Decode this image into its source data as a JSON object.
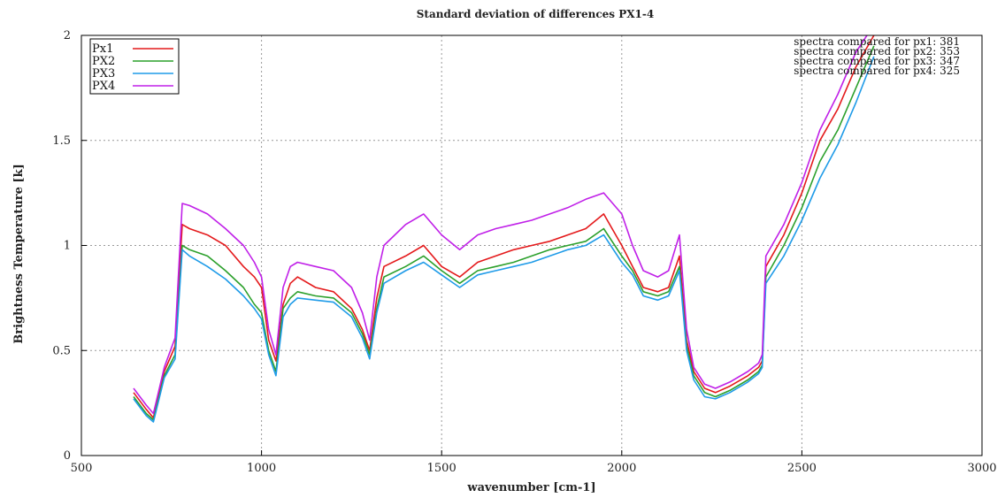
{
  "chart_data": {
    "type": "line",
    "title": "Standard deviation of differences PX1-4",
    "xlabel": "wavenumber [cm-1]",
    "ylabel": "Brightness Temperature [k]",
    "xlim": [
      500,
      3000
    ],
    "ylim": [
      0,
      2
    ],
    "xticks": [
      500,
      1000,
      1500,
      2000,
      2500,
      3000
    ],
    "yticks": [
      0,
      0.5,
      1,
      1.5,
      2
    ],
    "xtick_labels": [
      "500",
      "1000",
      "1500",
      "2000",
      "2500",
      "3000"
    ],
    "ytick_labels": [
      "0",
      "0.5",
      "1",
      "1.5",
      "2"
    ],
    "grid": true,
    "legend_position": "top-left",
    "annotations": [
      "spectra compared for px1: 381",
      "spectra compared for px2: 353",
      "spectra compared for px3: 347",
      "spectra compared for px4: 325"
    ],
    "x": [
      645,
      680,
      700,
      730,
      760,
      780,
      800,
      850,
      900,
      950,
      980,
      1000,
      1020,
      1040,
      1060,
      1080,
      1100,
      1150,
      1200,
      1250,
      1280,
      1300,
      1320,
      1340,
      1400,
      1450,
      1500,
      1550,
      1600,
      1650,
      1700,
      1750,
      1800,
      1850,
      1900,
      1950,
      2000,
      2030,
      2060,
      2100,
      2130,
      2160,
      2180,
      2200,
      2230,
      2260,
      2300,
      2350,
      2380,
      2390,
      2400,
      2450,
      2500,
      2550,
      2600,
      2650,
      2700
    ],
    "series": [
      {
        "name": "Px1",
        "color": "#e41a1c",
        "values": [
          0.3,
          0.22,
          0.18,
          0.4,
          0.52,
          1.1,
          1.08,
          1.05,
          1.0,
          0.9,
          0.85,
          0.8,
          0.55,
          0.45,
          0.72,
          0.82,
          0.85,
          0.8,
          0.78,
          0.7,
          0.6,
          0.5,
          0.75,
          0.9,
          0.95,
          1.0,
          0.9,
          0.85,
          0.92,
          0.95,
          0.98,
          1.0,
          1.02,
          1.05,
          1.08,
          1.15,
          1.0,
          0.9,
          0.8,
          0.78,
          0.8,
          0.95,
          0.55,
          0.4,
          0.32,
          0.3,
          0.33,
          0.38,
          0.42,
          0.45,
          0.9,
          1.05,
          1.25,
          1.5,
          1.65,
          1.85,
          2.0
        ]
      },
      {
        "name": "PX2",
        "color": "#2ca02c",
        "values": [
          0.28,
          0.2,
          0.17,
          0.38,
          0.48,
          1.0,
          0.98,
          0.95,
          0.88,
          0.8,
          0.72,
          0.68,
          0.5,
          0.4,
          0.7,
          0.75,
          0.78,
          0.76,
          0.75,
          0.68,
          0.58,
          0.48,
          0.7,
          0.85,
          0.9,
          0.95,
          0.88,
          0.82,
          0.88,
          0.9,
          0.92,
          0.95,
          0.98,
          1.0,
          1.02,
          1.08,
          0.95,
          0.88,
          0.78,
          0.76,
          0.78,
          0.9,
          0.52,
          0.38,
          0.3,
          0.28,
          0.31,
          0.36,
          0.4,
          0.43,
          0.85,
          1.0,
          1.18,
          1.4,
          1.55,
          1.75,
          1.95
        ]
      },
      {
        "name": "PX3",
        "color": "#1f9be8",
        "values": [
          0.27,
          0.19,
          0.16,
          0.37,
          0.46,
          0.98,
          0.95,
          0.9,
          0.84,
          0.76,
          0.7,
          0.65,
          0.48,
          0.38,
          0.66,
          0.72,
          0.75,
          0.74,
          0.73,
          0.66,
          0.56,
          0.46,
          0.68,
          0.82,
          0.88,
          0.92,
          0.86,
          0.8,
          0.86,
          0.88,
          0.9,
          0.92,
          0.95,
          0.98,
          1.0,
          1.05,
          0.92,
          0.86,
          0.76,
          0.74,
          0.76,
          0.88,
          0.5,
          0.36,
          0.28,
          0.27,
          0.3,
          0.35,
          0.39,
          0.42,
          0.82,
          0.95,
          1.12,
          1.32,
          1.48,
          1.68,
          1.9
        ]
      },
      {
        "name": "PX4",
        "color": "#c020e8",
        "values": [
          0.32,
          0.24,
          0.2,
          0.42,
          0.56,
          1.2,
          1.19,
          1.15,
          1.08,
          1.0,
          0.92,
          0.85,
          0.6,
          0.48,
          0.8,
          0.9,
          0.92,
          0.9,
          0.88,
          0.8,
          0.68,
          0.55,
          0.85,
          1.0,
          1.1,
          1.15,
          1.05,
          0.98,
          1.05,
          1.08,
          1.1,
          1.12,
          1.15,
          1.18,
          1.22,
          1.25,
          1.15,
          1.0,
          0.88,
          0.85,
          0.88,
          1.05,
          0.6,
          0.42,
          0.34,
          0.32,
          0.35,
          0.4,
          0.44,
          0.48,
          0.95,
          1.1,
          1.3,
          1.55,
          1.72,
          1.92,
          2.05
        ]
      }
    ]
  }
}
